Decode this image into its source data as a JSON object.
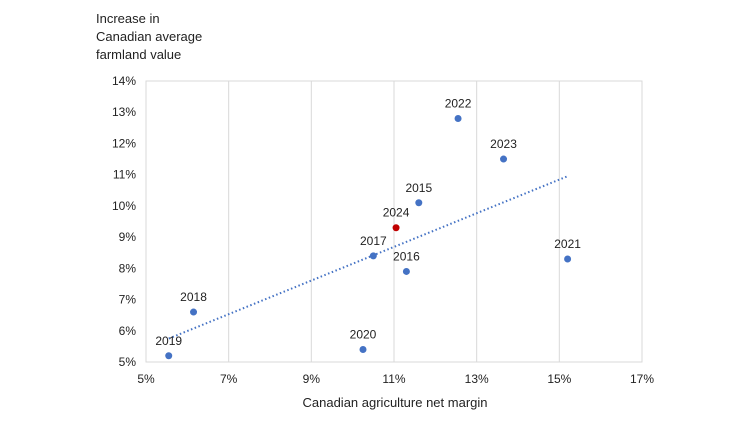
{
  "chart_data": {
    "type": "scatter",
    "title": "",
    "ylabel_lines": [
      "Increase in",
      "Canadian average",
      "farmland value"
    ],
    "xlabel": "Canadian agriculture net margin",
    "xlim": [
      5,
      17
    ],
    "ylim": [
      5,
      14
    ],
    "x_ticks": [
      5,
      7,
      9,
      11,
      13,
      15,
      17
    ],
    "x_tick_labels": [
      "5%",
      "7%",
      "9%",
      "11%",
      "13%",
      "15%",
      "17%"
    ],
    "y_ticks": [
      5,
      6,
      7,
      8,
      9,
      10,
      11,
      12,
      13,
      14
    ],
    "y_tick_labels": [
      "5%",
      "6%",
      "7%",
      "8%",
      "9%",
      "10%",
      "11%",
      "12%",
      "13%",
      "14%"
    ],
    "grid": "vertical",
    "points": [
      {
        "label": "2015",
        "x": 11.6,
        "y": 10.1,
        "color": "#4472c4"
      },
      {
        "label": "2016",
        "x": 11.3,
        "y": 7.9,
        "color": "#4472c4"
      },
      {
        "label": "2017",
        "x": 10.5,
        "y": 8.4,
        "color": "#4472c4"
      },
      {
        "label": "2018",
        "x": 6.15,
        "y": 6.6,
        "color": "#4472c4"
      },
      {
        "label": "2019",
        "x": 5.55,
        "y": 5.2,
        "color": "#4472c4"
      },
      {
        "label": "2020",
        "x": 10.25,
        "y": 5.4,
        "color": "#4472c4"
      },
      {
        "label": "2021",
        "x": 15.2,
        "y": 8.3,
        "color": "#4472c4"
      },
      {
        "label": "2022",
        "x": 12.55,
        "y": 12.8,
        "color": "#4472c4"
      },
      {
        "label": "2023",
        "x": 13.65,
        "y": 11.5,
        "color": "#4472c4"
      },
      {
        "label": "2024",
        "x": 11.05,
        "y": 9.3,
        "color": "#c00000"
      }
    ],
    "trendline": {
      "x": [
        5.55,
        15.2
      ],
      "y": [
        5.75,
        10.95
      ],
      "color": "#4472c4",
      "style": "dotted"
    }
  }
}
